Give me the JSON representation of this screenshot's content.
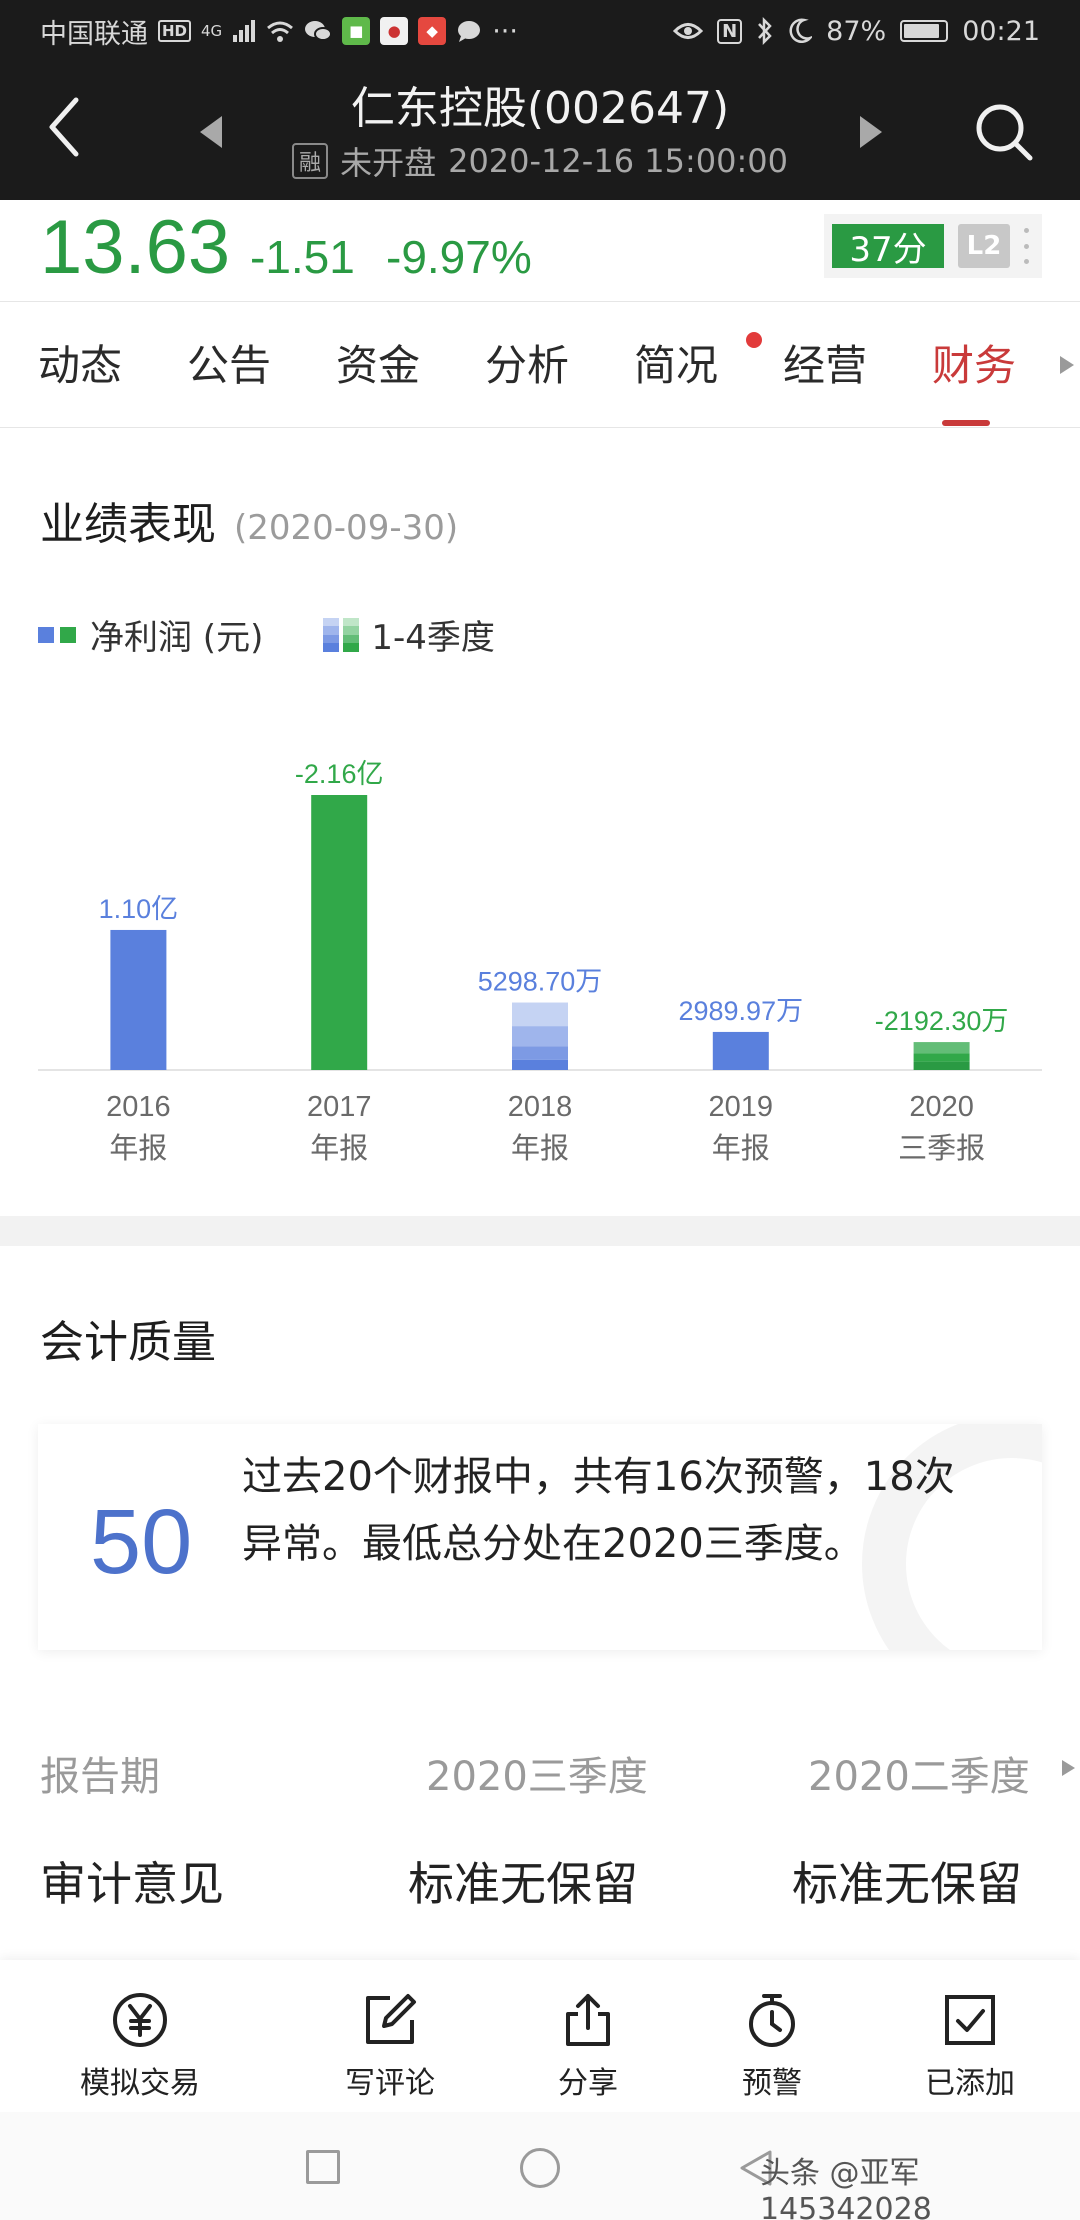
{
  "status_bar": {
    "carrier": "中国联通",
    "hd": "HD",
    "network": "4G",
    "battery": "87%",
    "battery_level": 0.87,
    "time": "00:21",
    "icons": [
      "signal-icon",
      "wifi-icon",
      "wechat-icon",
      "app-icon",
      "app-icon",
      "app-icon",
      "message-icon",
      "more-icon",
      "eye-icon",
      "nfc-icon",
      "bluetooth-icon",
      "moon-icon",
      "battery-icon"
    ]
  },
  "header": {
    "title": "仁东控股(002647)",
    "badge": "融",
    "status": "未开盘",
    "datetime": "2020-12-16 15:00:00"
  },
  "quote": {
    "price": "13.63",
    "change": "-1.51",
    "change_pct": "-9.97%",
    "score": "37分",
    "level": "L2",
    "color_down": "#2a9a43"
  },
  "tabs": {
    "items": [
      "动态",
      "公告",
      "资金",
      "分析",
      "简况",
      "经营",
      "财务"
    ],
    "active": "财务"
  },
  "performance": {
    "title": "业绩表现",
    "date": "(2020-09-30)",
    "legend_profit": "净利润 (元)",
    "legend_quarters": "1-4季度"
  },
  "chart_data": {
    "type": "bar",
    "unit": "元",
    "categories": [
      [
        "2016",
        "年报"
      ],
      [
        "2017",
        "年报"
      ],
      [
        "2018",
        "年报"
      ],
      [
        "2019",
        "年报"
      ],
      [
        "2020",
        "三季报"
      ]
    ],
    "values": [
      110000000,
      -216000000,
      52987000,
      29899700,
      -21923000
    ],
    "labels": [
      "1.10亿",
      "-2.16亿",
      "5298.70万",
      "2989.97万",
      "-2192.30万"
    ],
    "colors": {
      "positive": "#5a80dd",
      "negative": "#31a849"
    }
  },
  "quality": {
    "title": "会计质量",
    "score": "50",
    "text": "过去20个财报中，共有16次预警，18次异常。最低总分处在2020三季度。"
  },
  "table": {
    "header_label": "报告期",
    "header_col1": "2020三季度",
    "header_col2": "2020二季度",
    "audit_label": "审计意见",
    "audit_col1": "标准无保留",
    "audit_col2": "标准无保留"
  },
  "toolbar": {
    "items": [
      {
        "label": "模拟交易",
        "icon": "yuan-icon"
      },
      {
        "label": "写评论",
        "icon": "edit-icon"
      },
      {
        "label": "分享",
        "icon": "share-icon"
      },
      {
        "label": "预警",
        "icon": "stopwatch-icon"
      },
      {
        "label": "已添加",
        "icon": "check-box-icon"
      }
    ]
  },
  "watermark": "头条 @亚军145342028"
}
